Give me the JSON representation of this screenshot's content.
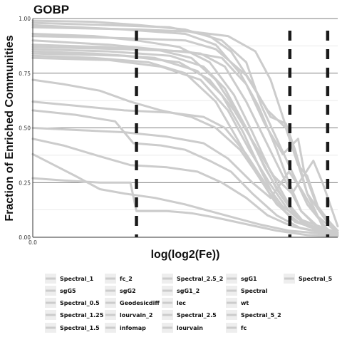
{
  "chart_data": {
    "type": "line",
    "title": "GOBP",
    "xlabel": "log(log2(Fe))",
    "ylabel": "Fraction of Enriched Communities",
    "xlim": [
      0,
      1
    ],
    "ylim": [
      0,
      1
    ],
    "x_ticks": [
      "0.0"
    ],
    "y_ticks": [
      "0.00",
      "0.25",
      "0.50",
      "0.75",
      "1.00"
    ],
    "grid": true,
    "legend_position": "bottom",
    "line_color": "#cccccc",
    "vline_color": "#1a1a1a",
    "vlines": [
      0.34,
      0.843,
      0.967
    ],
    "legend_entries": [
      "Spectral_1",
      "sgG5",
      "Spectral_0.5",
      "Spectral_1.25",
      "Spectral_1.5",
      "fc_2",
      "sgG2",
      "Geodesicdiff",
      "lourvain_2",
      "infomap",
      "Spectral_2.5_2",
      "sgG1_2",
      "lec",
      "Spectral_2.5",
      "lourvain",
      "sgG1",
      "Spectral",
      "wt",
      "Spectral_5_2",
      "fc",
      "Spectral_5"
    ],
    "series": [
      {
        "points": [
          [
            0,
            0.99
          ],
          [
            0.2,
            0.985
          ],
          [
            0.35,
            0.97
          ],
          [
            0.5,
            0.95
          ],
          [
            0.62,
            0.9
          ],
          [
            0.7,
            0.8
          ],
          [
            0.75,
            0.6
          ],
          [
            0.8,
            0.45
          ],
          [
            0.85,
            0.3
          ],
          [
            0.9,
            0.15
          ],
          [
            0.97,
            0.03
          ],
          [
            1,
            0.01
          ]
        ]
      },
      {
        "points": [
          [
            0,
            0.98
          ],
          [
            0.25,
            0.97
          ],
          [
            0.45,
            0.96
          ],
          [
            0.58,
            0.92
          ],
          [
            0.65,
            0.85
          ],
          [
            0.72,
            0.7
          ],
          [
            0.78,
            0.55
          ],
          [
            0.83,
            0.52
          ],
          [
            0.86,
            0.4
          ],
          [
            0.9,
            0.2
          ],
          [
            0.95,
            0.05
          ],
          [
            1,
            0.01
          ]
        ]
      },
      {
        "points": [
          [
            0,
            0.97
          ],
          [
            0.3,
            0.95
          ],
          [
            0.5,
            0.93
          ],
          [
            0.6,
            0.88
          ],
          [
            0.68,
            0.75
          ],
          [
            0.74,
            0.6
          ],
          [
            0.8,
            0.4
          ],
          [
            0.84,
            0.25
          ],
          [
            0.88,
            0.12
          ],
          [
            0.93,
            0.05
          ],
          [
            1,
            0.01
          ]
        ]
      },
      {
        "points": [
          [
            0,
            0.93
          ],
          [
            0.2,
            0.92
          ],
          [
            0.34,
            0.9
          ],
          [
            0.48,
            0.87
          ],
          [
            0.58,
            0.8
          ],
          [
            0.66,
            0.65
          ],
          [
            0.72,
            0.48
          ],
          [
            0.78,
            0.3
          ],
          [
            0.84,
            0.15
          ],
          [
            0.9,
            0.05
          ],
          [
            1,
            0.01
          ]
        ]
      },
      {
        "points": [
          [
            0,
            0.9
          ],
          [
            0.25,
            0.88
          ],
          [
            0.4,
            0.86
          ],
          [
            0.52,
            0.82
          ],
          [
            0.6,
            0.72
          ],
          [
            0.68,
            0.55
          ],
          [
            0.74,
            0.38
          ],
          [
            0.8,
            0.22
          ],
          [
            0.86,
            0.1
          ],
          [
            0.93,
            0.03
          ],
          [
            1,
            0.01
          ]
        ]
      },
      {
        "points": [
          [
            0,
            0.88
          ],
          [
            0.22,
            0.87
          ],
          [
            0.4,
            0.86
          ],
          [
            0.55,
            0.84
          ],
          [
            0.63,
            0.78
          ],
          [
            0.7,
            0.62
          ],
          [
            0.76,
            0.45
          ],
          [
            0.82,
            0.28
          ],
          [
            0.88,
            0.12
          ],
          [
            0.95,
            0.03
          ],
          [
            1,
            0.01
          ]
        ]
      },
      {
        "points": [
          [
            0,
            0.87
          ],
          [
            0.3,
            0.86
          ],
          [
            0.5,
            0.85
          ],
          [
            0.62,
            0.82
          ],
          [
            0.7,
            0.7
          ],
          [
            0.76,
            0.52
          ],
          [
            0.82,
            0.38
          ],
          [
            0.87,
            0.45
          ],
          [
            0.89,
            0.3
          ],
          [
            0.93,
            0.15
          ],
          [
            1,
            0.02
          ]
        ]
      },
      {
        "points": [
          [
            0,
            0.86
          ],
          [
            0.25,
            0.85
          ],
          [
            0.45,
            0.83
          ],
          [
            0.56,
            0.78
          ],
          [
            0.63,
            0.68
          ],
          [
            0.7,
            0.5
          ],
          [
            0.76,
            0.32
          ],
          [
            0.82,
            0.18
          ],
          [
            0.88,
            0.08
          ],
          [
            1,
            0.02
          ]
        ]
      },
      {
        "points": [
          [
            0,
            0.85
          ],
          [
            0.2,
            0.84
          ],
          [
            0.4,
            0.82
          ],
          [
            0.54,
            0.76
          ],
          [
            0.62,
            0.65
          ],
          [
            0.69,
            0.48
          ],
          [
            0.75,
            0.3
          ],
          [
            0.8,
            0.16
          ],
          [
            0.86,
            0.07
          ],
          [
            1,
            0.01
          ]
        ]
      },
      {
        "points": [
          [
            0,
            0.84
          ],
          [
            0.3,
            0.83
          ],
          [
            0.48,
            0.8
          ],
          [
            0.58,
            0.72
          ],
          [
            0.66,
            0.58
          ],
          [
            0.73,
            0.42
          ],
          [
            0.79,
            0.28
          ],
          [
            0.85,
            0.2
          ],
          [
            0.92,
            0.35
          ],
          [
            0.95,
            0.25
          ],
          [
            1,
            0.05
          ]
        ]
      },
      {
        "points": [
          [
            0,
            0.83
          ],
          [
            0.2,
            0.82
          ],
          [
            0.38,
            0.8
          ],
          [
            0.5,
            0.75
          ],
          [
            0.6,
            0.62
          ],
          [
            0.67,
            0.45
          ],
          [
            0.73,
            0.3
          ],
          [
            0.79,
            0.17
          ],
          [
            0.86,
            0.07
          ],
          [
            1,
            0.01
          ]
        ]
      },
      {
        "points": [
          [
            0,
            0.82
          ],
          [
            0.25,
            0.81
          ],
          [
            0.42,
            0.78
          ],
          [
            0.55,
            0.72
          ],
          [
            0.64,
            0.58
          ],
          [
            0.71,
            0.4
          ],
          [
            0.78,
            0.24
          ],
          [
            0.84,
            0.12
          ],
          [
            0.9,
            0.05
          ],
          [
            1,
            0.01
          ]
        ]
      },
      {
        "points": [
          [
            0,
            0.72
          ],
          [
            0.1,
            0.7
          ],
          [
            0.22,
            0.67
          ],
          [
            0.32,
            0.62
          ],
          [
            0.42,
            0.58
          ],
          [
            0.52,
            0.55
          ],
          [
            0.6,
            0.5
          ],
          [
            0.68,
            0.4
          ],
          [
            0.74,
            0.28
          ],
          [
            0.8,
            0.15
          ],
          [
            0.87,
            0.07
          ],
          [
            1,
            0.01
          ]
        ]
      },
      {
        "points": [
          [
            0,
            0.62
          ],
          [
            0.15,
            0.6
          ],
          [
            0.3,
            0.58
          ],
          [
            0.45,
            0.57
          ],
          [
            0.56,
            0.55
          ],
          [
            0.63,
            0.5
          ],
          [
            0.7,
            0.38
          ],
          [
            0.76,
            0.25
          ],
          [
            0.82,
            0.14
          ],
          [
            0.9,
            0.06
          ],
          [
            1,
            0.01
          ]
        ]
      },
      {
        "points": [
          [
            0,
            0.58
          ],
          [
            0.14,
            0.56
          ],
          [
            0.27,
            0.53
          ],
          [
            0.33,
            0.43
          ],
          [
            0.42,
            0.42
          ],
          [
            0.5,
            0.4
          ],
          [
            0.58,
            0.35
          ],
          [
            0.65,
            0.3
          ],
          [
            0.72,
            0.2
          ],
          [
            0.8,
            0.1
          ],
          [
            0.88,
            0.04
          ],
          [
            1,
            0.01
          ]
        ]
      },
      {
        "points": [
          [
            0,
            0.5
          ],
          [
            0.15,
            0.49
          ],
          [
            0.3,
            0.48
          ],
          [
            0.44,
            0.46
          ],
          [
            0.56,
            0.43
          ],
          [
            0.64,
            0.36
          ],
          [
            0.72,
            0.25
          ],
          [
            0.78,
            0.18
          ],
          [
            0.84,
            0.3
          ],
          [
            0.88,
            0.22
          ],
          [
            0.93,
            0.1
          ],
          [
            1,
            0.02
          ]
        ]
      },
      {
        "points": [
          [
            0,
            0.45
          ],
          [
            0.1,
            0.42
          ],
          [
            0.22,
            0.37
          ],
          [
            0.32,
            0.33
          ],
          [
            0.44,
            0.32
          ],
          [
            0.54,
            0.3
          ],
          [
            0.62,
            0.25
          ],
          [
            0.7,
            0.18
          ],
          [
            0.77,
            0.1
          ],
          [
            0.85,
            0.05
          ],
          [
            1,
            0.01
          ]
        ]
      },
      {
        "points": [
          [
            0,
            0.38
          ],
          [
            0.07,
            0.33
          ],
          [
            0.14,
            0.28
          ],
          [
            0.22,
            0.22
          ],
          [
            0.3,
            0.2
          ],
          [
            0.4,
            0.18
          ],
          [
            0.5,
            0.15
          ],
          [
            0.58,
            0.12
          ],
          [
            0.66,
            0.09
          ],
          [
            0.74,
            0.06
          ],
          [
            0.84,
            0.03
          ],
          [
            1,
            0.01
          ]
        ]
      },
      {
        "points": [
          [
            0,
            0.27
          ],
          [
            0.1,
            0.26
          ],
          [
            0.22,
            0.25
          ],
          [
            0.32,
            0.25
          ],
          [
            0.34,
            0.12
          ],
          [
            0.44,
            0.12
          ],
          [
            0.52,
            0.11
          ],
          [
            0.6,
            0.09
          ],
          [
            0.7,
            0.06
          ],
          [
            0.8,
            0.03
          ],
          [
            0.9,
            0.01
          ],
          [
            1,
            0.005
          ]
        ]
      },
      {
        "points": [
          [
            0,
            0.96
          ],
          [
            0.35,
            0.95
          ],
          [
            0.52,
            0.94
          ],
          [
            0.64,
            0.92
          ],
          [
            0.73,
            0.85
          ],
          [
            0.78,
            0.72
          ],
          [
            0.82,
            0.55
          ],
          [
            0.86,
            0.38
          ],
          [
            0.9,
            0.2
          ],
          [
            0.96,
            0.08
          ],
          [
            1,
            0.02
          ]
        ]
      },
      {
        "points": [
          [
            0,
            0.92
          ],
          [
            0.3,
            0.91
          ],
          [
            0.5,
            0.9
          ],
          [
            0.6,
            0.86
          ],
          [
            0.7,
            0.74
          ],
          [
            0.77,
            0.58
          ],
          [
            0.83,
            0.5
          ],
          [
            0.87,
            0.33
          ],
          [
            0.9,
            0.28
          ],
          [
            0.94,
            0.12
          ],
          [
            1,
            0.03
          ]
        ]
      }
    ]
  }
}
